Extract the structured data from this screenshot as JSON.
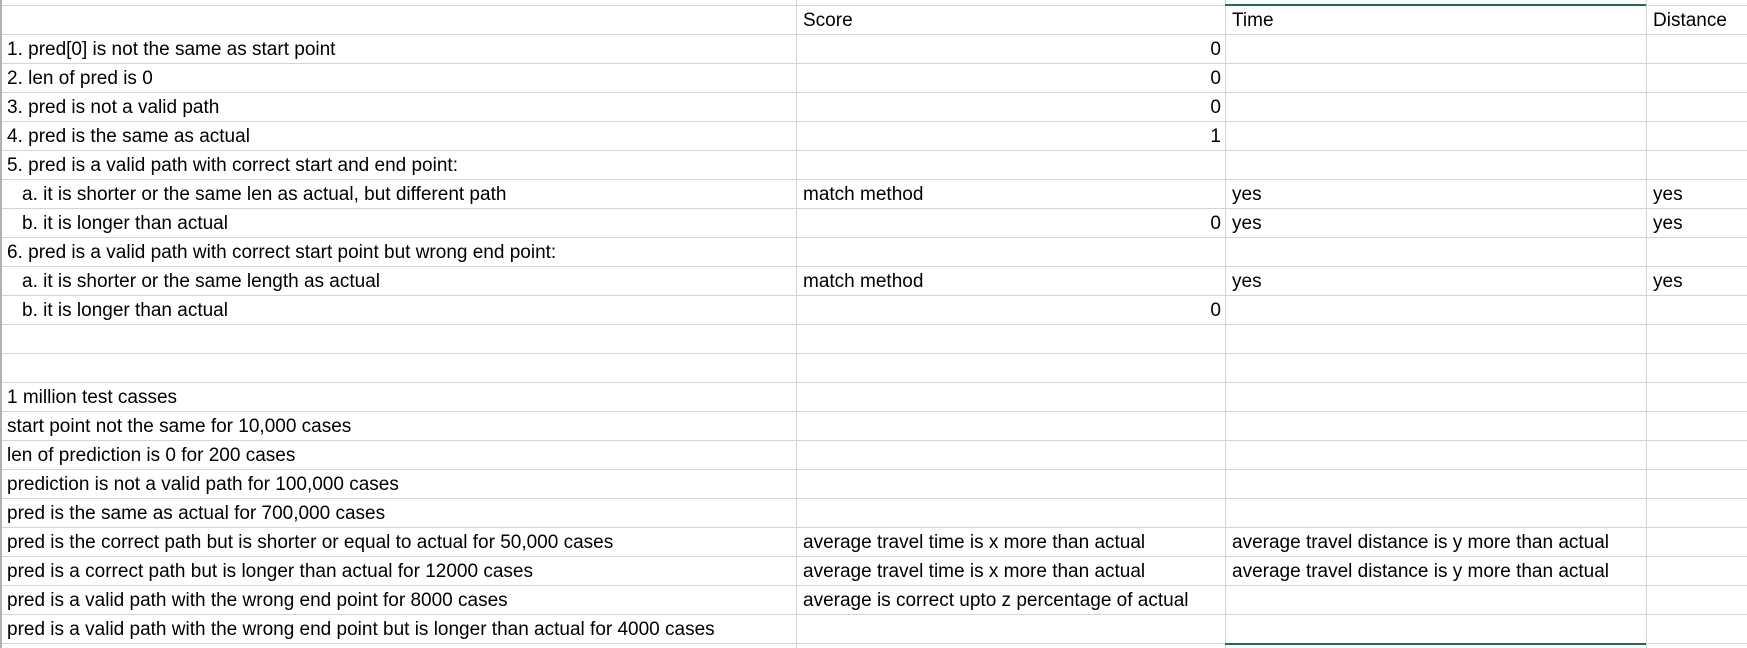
{
  "headers": {
    "score": "Score",
    "time": "Time",
    "distance": "Distance"
  },
  "rows": [
    {
      "label": "1. pred[0] is not the same as start point",
      "score": "0",
      "time": "",
      "distance": ""
    },
    {
      "label": "2. len of pred is 0",
      "score": "0",
      "time": "",
      "distance": ""
    },
    {
      "label": "3. pred is not a valid path",
      "score": "0",
      "time": "",
      "distance": ""
    },
    {
      "label": "4. pred is the same as actual",
      "score": "1",
      "time": "",
      "distance": ""
    },
    {
      "label": "5. pred is a valid path with correct start and end point:",
      "score": "",
      "time": "",
      "distance": ""
    },
    {
      "label": "a. it is shorter or the same len as actual, but different path",
      "score": "match method",
      "time": "yes",
      "distance": "yes"
    },
    {
      "label": "b. it is longer than actual",
      "score": "0",
      "time": "yes",
      "distance": "yes"
    },
    {
      "label": "6. pred is a valid path with correct start point but wrong end point:",
      "score": "",
      "time": "",
      "distance": ""
    },
    {
      "label": "a. it is shorter or the same length as actual",
      "score": "match method",
      "time": "yes",
      "distance": "yes"
    },
    {
      "label": "b. it is longer than actual",
      "score": "0",
      "time": "",
      "distance": ""
    }
  ],
  "stats": [
    {
      "label": "1 million test casses",
      "b": "",
      "c": ""
    },
    {
      "label": "start point not the same for 10,000 cases",
      "b": "",
      "c": ""
    },
    {
      "label": "len of prediction is 0 for 200 cases",
      "b": "",
      "c": ""
    },
    {
      "label": "prediction is not a valid path for 100,000 cases",
      "b": "",
      "c": ""
    },
    {
      "label": "pred is the same as actual for 700,000 cases",
      "b": "",
      "c": ""
    },
    {
      "label": "pred is the correct path but is shorter or equal to actual for 50,000 cases",
      "b": "average travel time is x more than actual",
      "c": "average travel distance is y more than actual"
    },
    {
      "label": "pred is a correct path but is longer than actual for 12000 cases",
      "b": "average travel time is x more than actual",
      "c": "average travel distance is y more than actual"
    },
    {
      "label": "pred is a valid path with the wrong end point for 8000 cases",
      "b": "average is correct upto z percentage of actual",
      "c": ""
    },
    {
      "label": "pred is a valid path with the wrong end point but is longer than actual for 4000 cases",
      "b": "",
      "c": ""
    }
  ]
}
